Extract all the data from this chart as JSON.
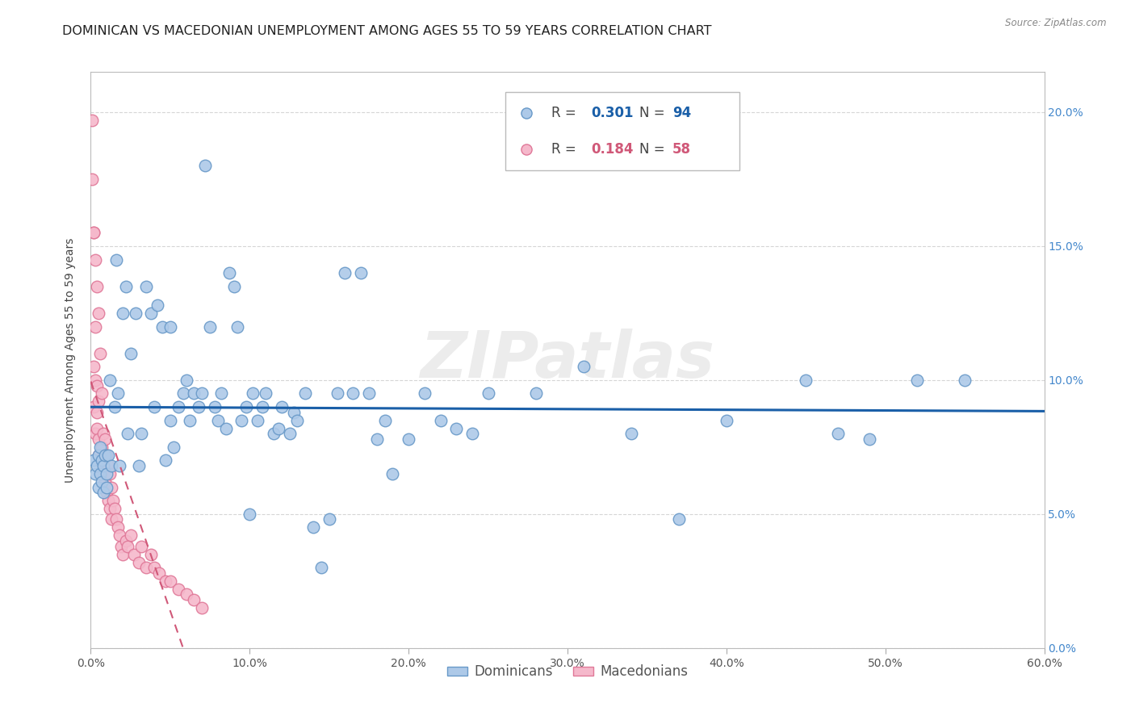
{
  "title": "DOMINICAN VS MACEDONIAN UNEMPLOYMENT AMONG AGES 55 TO 59 YEARS CORRELATION CHART",
  "source": "Source: ZipAtlas.com",
  "ylabel": "Unemployment Among Ages 55 to 59 years",
  "xlim": [
    0.0,
    0.6
  ],
  "ylim": [
    0.0,
    0.215
  ],
  "xticks": [
    0.0,
    0.1,
    0.2,
    0.3,
    0.4,
    0.5,
    0.6
  ],
  "xtick_labels": [
    "0.0%",
    "10.0%",
    "20.0%",
    "30.0%",
    "40.0%",
    "50.0%",
    "60.0%"
  ],
  "yticks": [
    0.0,
    0.05,
    0.1,
    0.15,
    0.2
  ],
  "ytick_labels": [
    "0.0%",
    "5.0%",
    "10.0%",
    "15.0%",
    "20.0%"
  ],
  "dominican_R": 0.301,
  "dominican_N": 94,
  "macedonian_R": 0.184,
  "macedonian_N": 58,
  "dominican_color": "#adc9e8",
  "dominican_edge": "#6899c8",
  "macedonian_color": "#f5b8cb",
  "macedonian_edge": "#e07898",
  "trend_dominican_color": "#1a5fa8",
  "trend_macedonian_color": "#d05878",
  "background_color": "#ffffff",
  "grid_color": "#cccccc",
  "title_fontsize": 11.5,
  "axis_fontsize": 10,
  "tick_fontsize": 10,
  "legend_fontsize": 12,
  "watermark_text": "ZIPatlas",
  "dominican_x": [
    0.002,
    0.003,
    0.004,
    0.005,
    0.005,
    0.006,
    0.006,
    0.007,
    0.007,
    0.008,
    0.008,
    0.009,
    0.01,
    0.01,
    0.011,
    0.012,
    0.013,
    0.015,
    0.016,
    0.017,
    0.018,
    0.02,
    0.022,
    0.023,
    0.025,
    0.028,
    0.03,
    0.032,
    0.035,
    0.038,
    0.04,
    0.042,
    0.045,
    0.047,
    0.05,
    0.05,
    0.052,
    0.055,
    0.058,
    0.06,
    0.062,
    0.065,
    0.068,
    0.07,
    0.072,
    0.075,
    0.078,
    0.08,
    0.082,
    0.085,
    0.087,
    0.09,
    0.092,
    0.095,
    0.098,
    0.1,
    0.102,
    0.105,
    0.108,
    0.11,
    0.115,
    0.118,
    0.12,
    0.125,
    0.128,
    0.13,
    0.135,
    0.14,
    0.145,
    0.15,
    0.155,
    0.16,
    0.165,
    0.17,
    0.175,
    0.18,
    0.185,
    0.19,
    0.2,
    0.21,
    0.22,
    0.23,
    0.24,
    0.25,
    0.28,
    0.31,
    0.34,
    0.37,
    0.4,
    0.45,
    0.47,
    0.49,
    0.52,
    0.55
  ],
  "dominican_y": [
    0.07,
    0.065,
    0.068,
    0.072,
    0.06,
    0.075,
    0.065,
    0.07,
    0.062,
    0.068,
    0.058,
    0.072,
    0.065,
    0.06,
    0.072,
    0.1,
    0.068,
    0.09,
    0.145,
    0.095,
    0.068,
    0.125,
    0.135,
    0.08,
    0.11,
    0.125,
    0.068,
    0.08,
    0.135,
    0.125,
    0.09,
    0.128,
    0.12,
    0.07,
    0.12,
    0.085,
    0.075,
    0.09,
    0.095,
    0.1,
    0.085,
    0.095,
    0.09,
    0.095,
    0.18,
    0.12,
    0.09,
    0.085,
    0.095,
    0.082,
    0.14,
    0.135,
    0.12,
    0.085,
    0.09,
    0.05,
    0.095,
    0.085,
    0.09,
    0.095,
    0.08,
    0.082,
    0.09,
    0.08,
    0.088,
    0.085,
    0.095,
    0.045,
    0.03,
    0.048,
    0.095,
    0.14,
    0.095,
    0.14,
    0.095,
    0.078,
    0.085,
    0.065,
    0.078,
    0.095,
    0.085,
    0.082,
    0.08,
    0.095,
    0.095,
    0.105,
    0.08,
    0.048,
    0.085,
    0.1,
    0.08,
    0.078,
    0.1,
    0.1
  ],
  "macedonian_x": [
    0.001,
    0.001,
    0.002,
    0.002,
    0.002,
    0.003,
    0.003,
    0.003,
    0.004,
    0.004,
    0.004,
    0.005,
    0.005,
    0.005,
    0.006,
    0.006,
    0.007,
    0.007,
    0.007,
    0.008,
    0.008,
    0.009,
    0.009,
    0.01,
    0.01,
    0.011,
    0.011,
    0.012,
    0.012,
    0.013,
    0.013,
    0.014,
    0.015,
    0.016,
    0.017,
    0.018,
    0.019,
    0.02,
    0.022,
    0.023,
    0.025,
    0.027,
    0.03,
    0.032,
    0.035,
    0.038,
    0.04,
    0.043,
    0.047,
    0.05,
    0.055,
    0.06,
    0.065,
    0.07,
    0.002,
    0.003,
    0.004,
    0.005
  ],
  "macedonian_y": [
    0.197,
    0.175,
    0.155,
    0.105,
    0.09,
    0.12,
    0.1,
    0.08,
    0.098,
    0.088,
    0.082,
    0.092,
    0.078,
    0.072,
    0.11,
    0.07,
    0.095,
    0.075,
    0.065,
    0.08,
    0.068,
    0.078,
    0.062,
    0.072,
    0.058,
    0.068,
    0.055,
    0.065,
    0.052,
    0.06,
    0.048,
    0.055,
    0.052,
    0.048,
    0.045,
    0.042,
    0.038,
    0.035,
    0.04,
    0.038,
    0.042,
    0.035,
    0.032,
    0.038,
    0.03,
    0.035,
    0.03,
    0.028,
    0.025,
    0.025,
    0.022,
    0.02,
    0.018,
    0.015,
    0.155,
    0.145,
    0.135,
    0.125
  ]
}
